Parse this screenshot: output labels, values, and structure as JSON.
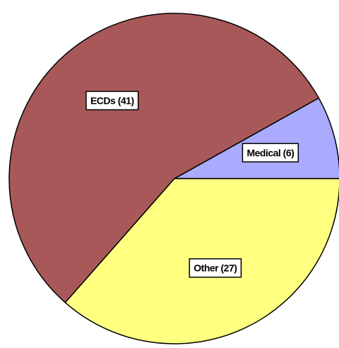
{
  "chart_data": {
    "type": "pie",
    "values": [
      6,
      41,
      27
    ],
    "value_labels": [
      "Medical (6)",
      "ECDs (41)",
      "Other (27)"
    ],
    "colors": [
      "#aaaaff",
      "#a85858",
      "#ffff80"
    ]
  }
}
